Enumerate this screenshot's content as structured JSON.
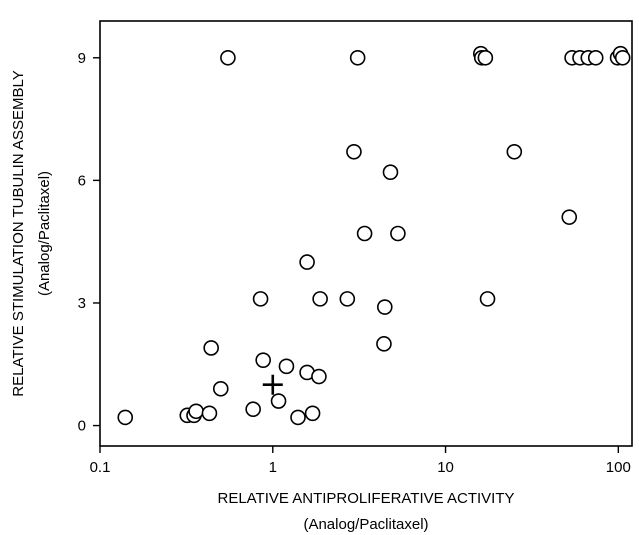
{
  "chart_data": {
    "type": "scatter",
    "title": "",
    "xlabel": "RELATIVE ANTIPROLIFERATIVE ACTIVITY",
    "xlabel_sub": "(Analog/Paclitaxel)",
    "ylabel": "RELATIVE STIMULATION TUBULIN ASSEMBLY",
    "ylabel_sub": "(Analog/Paclitaxel)",
    "x_scale": "log",
    "xlim": [
      0.1,
      120
    ],
    "ylim": [
      -0.5,
      9.9
    ],
    "x_ticks": [
      0.1,
      1,
      10,
      100
    ],
    "x_tick_labels": [
      "0.1",
      "1",
      "10",
      "100"
    ],
    "y_ticks": [
      0,
      3,
      6,
      9
    ],
    "y_tick_labels": [
      "0",
      "3",
      "6",
      "9"
    ],
    "grid": false,
    "series": [
      {
        "marker": "open-circle",
        "points": [
          [
            0.14,
            0.2
          ],
          [
            0.32,
            0.25
          ],
          [
            0.35,
            0.25
          ],
          [
            0.36,
            0.35
          ],
          [
            0.43,
            0.3
          ],
          [
            0.44,
            1.9
          ],
          [
            0.5,
            0.9
          ],
          [
            0.77,
            0.4
          ],
          [
            0.88,
            1.6
          ],
          [
            1.08,
            0.6
          ],
          [
            1.2,
            1.45
          ],
          [
            1.4,
            0.2
          ],
          [
            1.58,
            1.3
          ],
          [
            1.7,
            0.3
          ],
          [
            1.85,
            1.2
          ],
          [
            0.85,
            3.1
          ],
          [
            1.58,
            4.0
          ],
          [
            1.88,
            3.1
          ],
          [
            2.7,
            3.1
          ],
          [
            2.95,
            6.7
          ],
          [
            3.4,
            4.7
          ],
          [
            4.4,
            2.0
          ],
          [
            4.45,
            2.9
          ],
          [
            4.8,
            6.2
          ],
          [
            5.3,
            4.7
          ],
          [
            17.5,
            3.1
          ],
          [
            25,
            6.7
          ],
          [
            52,
            5.1
          ],
          [
            0.55,
            9.0
          ],
          [
            3.1,
            9.0
          ],
          [
            16,
            9.1
          ],
          [
            16.2,
            9.0
          ],
          [
            17,
            9.0
          ],
          [
            54,
            9.0
          ],
          [
            60,
            9.0
          ],
          [
            67,
            9.0
          ],
          [
            74,
            9.0
          ],
          [
            99,
            9.0
          ],
          [
            103,
            9.1
          ],
          [
            106,
            9.0
          ]
        ]
      },
      {
        "marker": "cross",
        "points": [
          [
            1,
            1
          ]
        ]
      }
    ]
  }
}
